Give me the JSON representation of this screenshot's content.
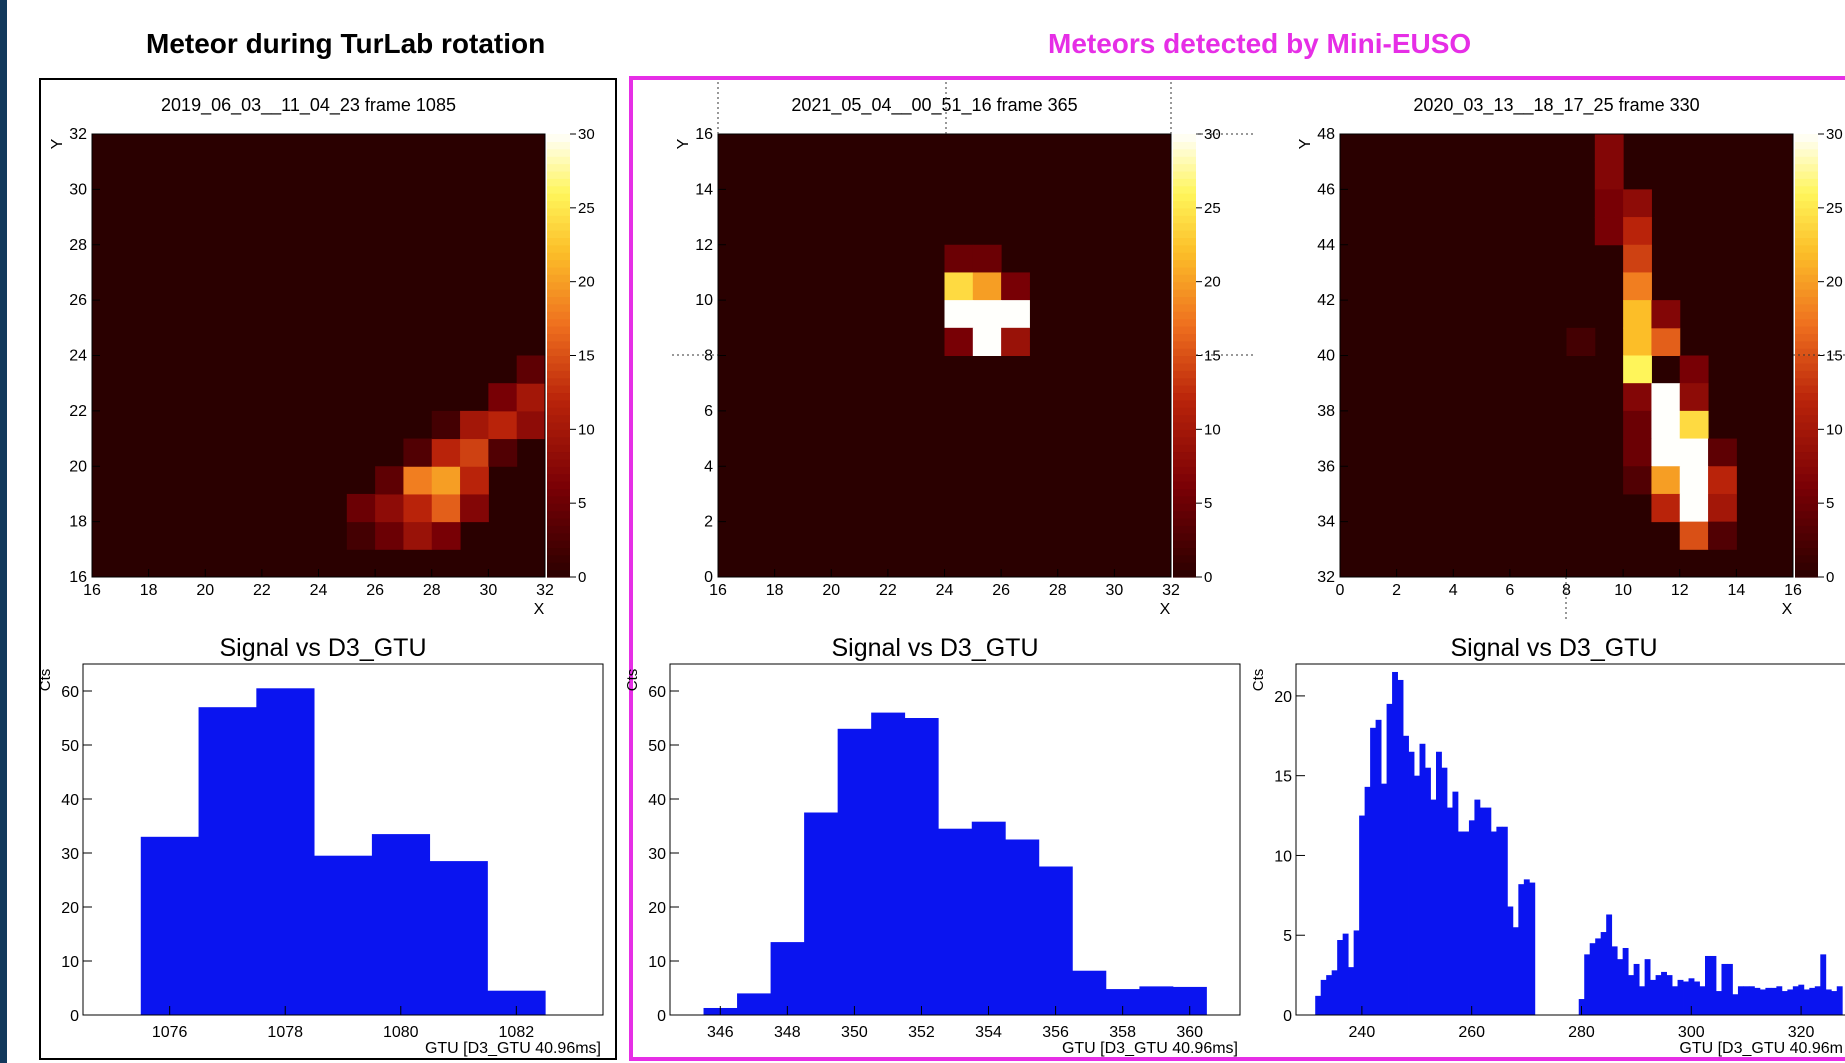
{
  "headers": {
    "left": "Meteor during TurLab rotation",
    "right": "Meteors detected by Mini-EUSO"
  },
  "colors": {
    "accent": "#e62ee6",
    "histogram": "#0a14f0",
    "background": "#2a0000"
  },
  "chart_data": [
    {
      "type": "heatmap",
      "title": "2019_06_03__11_04_23 frame 1085",
      "xlabel": "X",
      "ylabel": "Y",
      "xlim": [
        16,
        32
      ],
      "ylim": [
        16,
        32
      ],
      "xticks": [
        "16",
        "18",
        "20",
        "22",
        "24",
        "26",
        "28",
        "30",
        "32"
      ],
      "yticks": [
        "16",
        "18",
        "20",
        "22",
        "24",
        "26",
        "28",
        "30",
        "32"
      ],
      "colorbar": {
        "range": [
          0,
          30
        ],
        "ticks": [
          "0",
          "5",
          "10",
          "15",
          "20",
          "25",
          "30"
        ]
      },
      "cells": [
        [
          25,
          17,
          2
        ],
        [
          25,
          18,
          5
        ],
        [
          26,
          17,
          5
        ],
        [
          26,
          18,
          8
        ],
        [
          26,
          19,
          4
        ],
        [
          27,
          17,
          9
        ],
        [
          27,
          18,
          12
        ],
        [
          27,
          19,
          18
        ],
        [
          27,
          20,
          3
        ],
        [
          28,
          17,
          6
        ],
        [
          28,
          18,
          16
        ],
        [
          28,
          19,
          20
        ],
        [
          28,
          20,
          12
        ],
        [
          28,
          21,
          2
        ],
        [
          29,
          18,
          7
        ],
        [
          29,
          19,
          12
        ],
        [
          29,
          20,
          14
        ],
        [
          29,
          21,
          10
        ],
        [
          30,
          20,
          3
        ],
        [
          30,
          21,
          12
        ],
        [
          30,
          22,
          6
        ],
        [
          31,
          21,
          8
        ],
        [
          31,
          22,
          10
        ],
        [
          31,
          23,
          4
        ]
      ]
    },
    {
      "type": "heatmap",
      "title": "2021_05_04__00_51_16 frame 365",
      "xlabel": "X",
      "ylabel": "Y",
      "xlim": [
        16,
        32
      ],
      "ylim": [
        0,
        16
      ],
      "xticks": [
        "16",
        "18",
        "20",
        "22",
        "24",
        "26",
        "28",
        "30",
        "32"
      ],
      "yticks": [
        "0",
        "2",
        "4",
        "6",
        "8",
        "10",
        "12",
        "14",
        "16"
      ],
      "colorbar": {
        "range": [
          0,
          30
        ],
        "ticks": [
          "0",
          "5",
          "10",
          "15",
          "20",
          "25",
          "30"
        ]
      },
      "cells": [
        [
          24,
          11,
          5
        ],
        [
          25,
          11,
          5
        ],
        [
          24,
          10,
          24
        ],
        [
          25,
          10,
          20
        ],
        [
          26,
          10,
          6
        ],
        [
          24,
          9,
          30
        ],
        [
          25,
          9,
          30
        ],
        [
          26,
          9,
          30
        ],
        [
          24,
          8,
          6
        ],
        [
          25,
          8,
          30
        ],
        [
          26,
          8,
          9
        ]
      ]
    },
    {
      "type": "heatmap",
      "title": "2020_03_13__18_17_25 frame 330",
      "xlabel": "X",
      "ylabel": "Y",
      "xlim": [
        0,
        16
      ],
      "ylim": [
        32,
        48
      ],
      "xticks": [
        "0",
        "2",
        "4",
        "6",
        "8",
        "10",
        "12",
        "14",
        "16"
      ],
      "yticks": [
        "32",
        "34",
        "36",
        "38",
        "40",
        "42",
        "44",
        "46",
        "48"
      ],
      "colorbar": {
        "range": [
          0,
          30
        ],
        "ticks": [
          "0",
          "5",
          "10",
          "15",
          "20",
          "25",
          "30"
        ]
      },
      "cells": [
        [
          9,
          47,
          7
        ],
        [
          9,
          46,
          7
        ],
        [
          9,
          45,
          6
        ],
        [
          9,
          44,
          6
        ],
        [
          10,
          45,
          8
        ],
        [
          10,
          44,
          12
        ],
        [
          10,
          43,
          14
        ],
        [
          10,
          42,
          18
        ],
        [
          10,
          41,
          22
        ],
        [
          10,
          40,
          22
        ],
        [
          11,
          40,
          16
        ],
        [
          12,
          39,
          6
        ],
        [
          10,
          39,
          26
        ],
        [
          11,
          41,
          7
        ],
        [
          8,
          40,
          2
        ],
        [
          10,
          38,
          7
        ],
        [
          11,
          38,
          30
        ],
        [
          12,
          38,
          8
        ],
        [
          10,
          37,
          5
        ],
        [
          11,
          37,
          30
        ],
        [
          12,
          37,
          24
        ],
        [
          10,
          36,
          5
        ],
        [
          11,
          36,
          30
        ],
        [
          12,
          36,
          30
        ],
        [
          13,
          36,
          4
        ],
        [
          10,
          35,
          3
        ],
        [
          11,
          35,
          20
        ],
        [
          12,
          35,
          30
        ],
        [
          13,
          35,
          12
        ],
        [
          11,
          34,
          12
        ],
        [
          12,
          34,
          30
        ],
        [
          13,
          34,
          10
        ],
        [
          12,
          33,
          15
        ],
        [
          13,
          33,
          3
        ]
      ]
    },
    {
      "type": "bar",
      "title": "Signal vs D3_GTU",
      "xlabel": "GTU [D3_GTU 40.96ms]",
      "ylabel": "Cts",
      "xlim": [
        1074.5,
        1083.5
      ],
      "ylim": [
        0,
        65
      ],
      "xticks": [
        "1076",
        "1078",
        "1080",
        "1082"
      ],
      "yticks": [
        "0",
        "10",
        "20",
        "30",
        "40",
        "50",
        "60"
      ],
      "bins": [
        {
          "x": 1076,
          "y": 33
        },
        {
          "x": 1077,
          "y": 57
        },
        {
          "x": 1078,
          "y": 60.5
        },
        {
          "x": 1079,
          "y": 29.5
        },
        {
          "x": 1080,
          "y": 33.5
        },
        {
          "x": 1081,
          "y": 28.5
        },
        {
          "x": 1082,
          "y": 4.5
        }
      ]
    },
    {
      "type": "bar",
      "title": "Signal vs D3_GTU",
      "xlabel": "GTU [D3_GTU 40.96ms]",
      "ylabel": "Cts",
      "xlim": [
        344.5,
        361.5
      ],
      "ylim": [
        0,
        65
      ],
      "xticks": [
        "346",
        "348",
        "350",
        "352",
        "354",
        "356",
        "358",
        "360"
      ],
      "yticks": [
        "0",
        "10",
        "20",
        "30",
        "40",
        "50",
        "60"
      ],
      "bins": [
        {
          "x": 346,
          "y": 1.3
        },
        {
          "x": 347,
          "y": 4
        },
        {
          "x": 348,
          "y": 13.5
        },
        {
          "x": 349,
          "y": 37.5
        },
        {
          "x": 350,
          "y": 53
        },
        {
          "x": 351,
          "y": 56
        },
        {
          "x": 352,
          "y": 55
        },
        {
          "x": 353,
          "y": 34.5
        },
        {
          "x": 354,
          "y": 35.8
        },
        {
          "x": 355,
          "y": 32.5
        },
        {
          "x": 356,
          "y": 27.5
        },
        {
          "x": 357,
          "y": 8.2
        },
        {
          "x": 358,
          "y": 4.8
        },
        {
          "x": 359,
          "y": 5.3
        },
        {
          "x": 360,
          "y": 5.2
        }
      ]
    },
    {
      "type": "bar",
      "title": "Signal vs D3_GTU",
      "xlabel": "GTU [D3_GTU 40.96m",
      "ylabel": "Cts",
      "xlim": [
        228,
        328
      ],
      "ylim": [
        0,
        22
      ],
      "xticks": [
        "240",
        "260",
        "280",
        "300",
        "320"
      ],
      "yticks": [
        "0",
        "5",
        "10",
        "15",
        "20"
      ],
      "bins": [
        {
          "x": 232,
          "y": 1.2
        },
        {
          "x": 233,
          "y": 2.2
        },
        {
          "x": 234,
          "y": 2.5
        },
        {
          "x": 235,
          "y": 2.8
        },
        {
          "x": 236,
          "y": 4.7
        },
        {
          "x": 237,
          "y": 5.1
        },
        {
          "x": 238,
          "y": 3
        },
        {
          "x": 239,
          "y": 5.3
        },
        {
          "x": 240,
          "y": 12.5
        },
        {
          "x": 241,
          "y": 14.3
        },
        {
          "x": 242,
          "y": 18
        },
        {
          "x": 243,
          "y": 18.5
        },
        {
          "x": 244,
          "y": 14.5
        },
        {
          "x": 245,
          "y": 19.5
        },
        {
          "x": 246,
          "y": 21.5
        },
        {
          "x": 247,
          "y": 21
        },
        {
          "x": 248,
          "y": 17.5
        },
        {
          "x": 249,
          "y": 16.5
        },
        {
          "x": 250,
          "y": 15
        },
        {
          "x": 251,
          "y": 17
        },
        {
          "x": 252,
          "y": 15.5
        },
        {
          "x": 253,
          "y": 13.5
        },
        {
          "x": 254,
          "y": 16.5
        },
        {
          "x": 255,
          "y": 15.5
        },
        {
          "x": 256,
          "y": 13
        },
        {
          "x": 257,
          "y": 14
        },
        {
          "x": 258,
          "y": 11.5
        },
        {
          "x": 259,
          "y": 11.5
        },
        {
          "x": 260,
          "y": 12.2
        },
        {
          "x": 261,
          "y": 13.5
        },
        {
          "x": 262,
          "y": 13
        },
        {
          "x": 263,
          "y": 13
        },
        {
          "x": 264,
          "y": 11.5
        },
        {
          "x": 265,
          "y": 11.8
        },
        {
          "x": 266,
          "y": 11.8
        },
        {
          "x": 267,
          "y": 6.8
        },
        {
          "x": 268,
          "y": 5.5
        },
        {
          "x": 269,
          "y": 8.2
        },
        {
          "x": 270,
          "y": 8.5
        },
        {
          "x": 271,
          "y": 8.3
        },
        {
          "x": 280,
          "y": 1
        },
        {
          "x": 281,
          "y": 3.8
        },
        {
          "x": 282,
          "y": 4.5
        },
        {
          "x": 283,
          "y": 4.8
        },
        {
          "x": 284,
          "y": 5.2
        },
        {
          "x": 285,
          "y": 6.3
        },
        {
          "x": 286,
          "y": 4.3
        },
        {
          "x": 287,
          "y": 3.5
        },
        {
          "x": 288,
          "y": 4.2
        },
        {
          "x": 289,
          "y": 2.5
        },
        {
          "x": 290,
          "y": 3.2
        },
        {
          "x": 291,
          "y": 1.8
        },
        {
          "x": 292,
          "y": 3.5
        },
        {
          "x": 293,
          "y": 2.2
        },
        {
          "x": 294,
          "y": 2.5
        },
        {
          "x": 295,
          "y": 2.7
        },
        {
          "x": 296,
          "y": 2.5
        },
        {
          "x": 297,
          "y": 1.8
        },
        {
          "x": 298,
          "y": 2.2
        },
        {
          "x": 299,
          "y": 2.1
        },
        {
          "x": 300,
          "y": 2.3
        },
        {
          "x": 301,
          "y": 2.1
        },
        {
          "x": 302,
          "y": 1.8
        },
        {
          "x": 303,
          "y": 3.7
        },
        {
          "x": 304,
          "y": 3.7
        },
        {
          "x": 305,
          "y": 1.5
        },
        {
          "x": 306,
          "y": 3.2
        },
        {
          "x": 307,
          "y": 3.2
        },
        {
          "x": 308,
          "y": 1.3
        },
        {
          "x": 309,
          "y": 1.8
        },
        {
          "x": 310,
          "y": 1.8
        },
        {
          "x": 311,
          "y": 1.8
        },
        {
          "x": 312,
          "y": 1.7
        },
        {
          "x": 313,
          "y": 1.6
        },
        {
          "x": 314,
          "y": 1.7
        },
        {
          "x": 315,
          "y": 1.7
        },
        {
          "x": 316,
          "y": 1.8
        },
        {
          "x": 317,
          "y": 1.5
        },
        {
          "x": 318,
          "y": 1.6
        },
        {
          "x": 319,
          "y": 1.8
        },
        {
          "x": 320,
          "y": 1.9
        },
        {
          "x": 321,
          "y": 1.6
        },
        {
          "x": 322,
          "y": 1.7
        },
        {
          "x": 323,
          "y": 1.8
        },
        {
          "x": 324,
          "y": 3.8
        },
        {
          "x": 325,
          "y": 1.6
        },
        {
          "x": 326,
          "y": 1.5
        },
        {
          "x": 327,
          "y": 1.8
        }
      ]
    }
  ]
}
